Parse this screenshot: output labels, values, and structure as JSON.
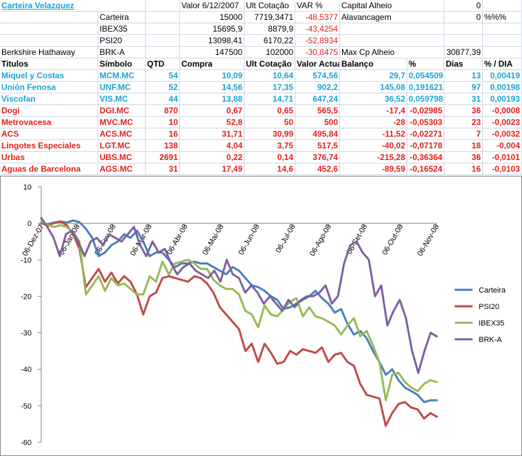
{
  "sheet": {
    "title": "Carteira Velazquez",
    "header_valor": "Valor 6/12/2007",
    "header_ult": "Ult Cotação",
    "header_var": "VAR %",
    "summary": [
      [
        "Carteira",
        "15000",
        "7719,3471",
        "-48,5377"
      ],
      [
        "IBEX35",
        "15695,9",
        "8879,9",
        "-43,4254"
      ],
      [
        "PSI20",
        "13098,41",
        "6170,22",
        "-52,8934"
      ],
      [
        "BRK-A",
        "147500",
        "102000",
        "-30,8475"
      ]
    ],
    "brk_name": "Berkshire Hathaway",
    "capital_alheio_label": "Capital Alheio",
    "capital_alheio_value": "0",
    "alavancagem_label": "Alavancagem",
    "alavancagem_value": "0",
    "alavancagem_unit": "%%%",
    "max_cp_label": "Max Cp Alheio",
    "max_cp_value": "30877,39",
    "columns": [
      "Titulos",
      "Símbolo",
      "QTD",
      "Compra",
      "Ult Cotação",
      "Valor Actual",
      "Balanço",
      "%",
      "Dias",
      "% / DIA"
    ],
    "holdings": [
      {
        "name": "Miquel y Costas",
        "symbol": "MCM.MC",
        "qtd": "54",
        "compra": "10,09",
        "ult": "10,64",
        "valor": "574,56",
        "balanco": "29,7",
        "pct": "0,054509",
        "dias": "13",
        "pctdia": "0,00419",
        "gain": true
      },
      {
        "name": "Unión Fenosa",
        "symbol": "UNF.MC",
        "qtd": "52",
        "compra": "14,56",
        "ult": "17,35",
        "valor": "902,2",
        "balanco": "145,08",
        "pct": "0,191621",
        "dias": "97",
        "pctdia": "0,00198",
        "gain": true
      },
      {
        "name": "Viscofan",
        "symbol": "VIS.MC",
        "qtd": "44",
        "compra": "13,88",
        "ult": "14,71",
        "valor": "647,24",
        "balanco": "36,52",
        "pct": "0,059798",
        "dias": "31",
        "pctdia": "0,00193",
        "gain": true
      },
      {
        "name": "Dogi",
        "symbol": "DGI.MC",
        "qtd": "870",
        "compra": "0,67",
        "ult": "0,65",
        "valor": "565,5",
        "balanco": "-17,4",
        "pct": "-0,02985",
        "dias": "36",
        "pctdia": "-0,0008",
        "gain": false
      },
      {
        "name": "Metrovacesa",
        "symbol": "MVC.MC",
        "qtd": "10",
        "compra": "52,8",
        "ult": "50",
        "valor": "500",
        "balanco": "-28",
        "pct": "-0,05303",
        "dias": "23",
        "pctdia": "-0,0023",
        "gain": false
      },
      {
        "name": "ACS",
        "symbol": "ACS.MC",
        "qtd": "16",
        "compra": "31,71",
        "ult": "30,99",
        "valor": "495,84",
        "balanco": "-11,52",
        "pct": "-0,02271",
        "dias": "7",
        "pctdia": "-0,0032",
        "gain": false
      },
      {
        "name": "Lingotes Especiales",
        "symbol": "LGT.MC",
        "qtd": "138",
        "compra": "4,04",
        "ult": "3,75",
        "valor": "517,5",
        "balanco": "-40,02",
        "pct": "-0,07178",
        "dias": "18",
        "pctdia": "-0,004",
        "gain": false
      },
      {
        "name": "Urbas",
        "symbol": "UBS.MC",
        "qtd": "2691",
        "compra": "0,22",
        "ult": "0,14",
        "valor": "376,74",
        "balanco": "-215,28",
        "pct": "-0,36364",
        "dias": "36",
        "pctdia": "-0,0101",
        "gain": false
      },
      {
        "name": "Aguas de Barcelona",
        "symbol": "AGS.MC",
        "qtd": "31",
        "compra": "17,49",
        "ult": "14,6",
        "valor": "452,6",
        "balanco": "-89,59",
        "pct": "-0,16524",
        "dias": "16",
        "pctdia": "-0,0103",
        "gain": false
      }
    ]
  },
  "chart_data": {
    "type": "line",
    "title": "",
    "xlabel": "",
    "ylabel": "",
    "ylim": [
      -60,
      10
    ],
    "yticks": [
      "10",
      "0",
      "-10",
      "-20",
      "-30",
      "-40",
      "-50",
      "-60"
    ],
    "xticks": [
      "06-Dez-07",
      "06-Jan-08",
      "06-Fev-08",
      "06-Mar-08",
      "06-Abr-08",
      "06-Mai-08",
      "06-Jun-08",
      "06-Jul-08",
      "06-Ago-08",
      "06-Set-08",
      "06-Out-08",
      "06-Nov-08"
    ],
    "grid": "none",
    "legend_position": "right",
    "series": [
      {
        "name": "Carteira",
        "color": "#4a7ebb",
        "values": [
          0,
          -0.3,
          0.2,
          0.5,
          0.2,
          0.8,
          0.3,
          -1.5,
          -4,
          -9,
          -8,
          -6,
          -5,
          -3,
          -4,
          -2,
          -5,
          -9,
          -8,
          -8,
          -10,
          -12,
          -11,
          -11,
          -10.5,
          -11,
          -11,
          -12,
          -13,
          -14,
          -12,
          -13,
          -15,
          -17,
          -17.5,
          -18.5,
          -20,
          -21,
          -23.5,
          -23,
          -22,
          -21,
          -20,
          -18.5,
          -20.5,
          -22,
          -24.5,
          -23.5,
          -27.5,
          -30.5,
          -29.5,
          -31.5,
          -35,
          -38,
          -41.5,
          -40,
          -43,
          -45,
          -46,
          -47,
          -49,
          -48.5,
          -48.5
        ]
      },
      {
        "name": "PSI20",
        "color": "#be4b48",
        "values": [
          0,
          -0.5,
          0,
          0.5,
          -0.5,
          -3,
          -7,
          -17.5,
          -15,
          -12.5,
          -16,
          -13.5,
          -16.5,
          -14.5,
          -16,
          -19.5,
          -25,
          -20,
          -19,
          -15,
          -14.5,
          -15,
          -15.5,
          -16,
          -14.5,
          -15,
          -16.5,
          -19,
          -23,
          -25,
          -27,
          -29,
          -35,
          -33,
          -38,
          -33,
          -35.5,
          -38.5,
          -38,
          -35,
          -36,
          -34.5,
          -35,
          -35.5,
          -34,
          -38,
          -36,
          -35.5,
          -38,
          -39,
          -44,
          -47,
          -47.5,
          -48,
          -55.5,
          -52,
          -49.5,
          -49,
          -50.5,
          -51,
          -53.5,
          -52,
          -53
        ]
      },
      {
        "name": "IBEX35",
        "color": "#98b954",
        "values": [
          0.5,
          -0.5,
          -1,
          -0.5,
          -1,
          -2.5,
          -5,
          -19.5,
          -17,
          -14.5,
          -18.5,
          -15,
          -17,
          -16.5,
          -18,
          -19.5,
          -19.5,
          -14.5,
          -16,
          -10.5,
          -14,
          -11,
          -10.5,
          -10,
          -11,
          -12.5,
          -12.5,
          -15.5,
          -17,
          -18,
          -18,
          -19.5,
          -24,
          -25,
          -28.5,
          -22.5,
          -25,
          -25.5,
          -23.5,
          -21.5,
          -20.5,
          -25.5,
          -23,
          -25.5,
          -26,
          -27,
          -28,
          -30.5,
          -28,
          -26,
          -31,
          -29.5,
          -33.5,
          -38,
          -48.5,
          -41.5,
          -41,
          -43.5,
          -45,
          -46,
          -44,
          -43,
          -43.5
        ]
      },
      {
        "name": "BRK-A",
        "color": "#7d60a0",
        "values": [
          1.5,
          -1,
          -4,
          -9,
          -3,
          -2,
          -5,
          -9,
          -5,
          -4,
          -6,
          -3,
          -4,
          -5,
          -3,
          -1,
          -6,
          -9,
          -5,
          -8,
          -7,
          -11,
          -14,
          -12,
          -11,
          -13,
          -14,
          -15,
          -13,
          -16,
          -10,
          -14,
          -15,
          -19,
          -17,
          -19,
          -22,
          -20,
          -22,
          -24,
          -21,
          -23,
          -21,
          -20,
          -20,
          -19,
          -17,
          -22,
          -20,
          -11,
          -6,
          -5,
          -8,
          -10,
          -20,
          -17,
          -28,
          -24,
          -21,
          -26,
          -35,
          -41,
          -35,
          -30,
          -31
        ]
      }
    ]
  }
}
